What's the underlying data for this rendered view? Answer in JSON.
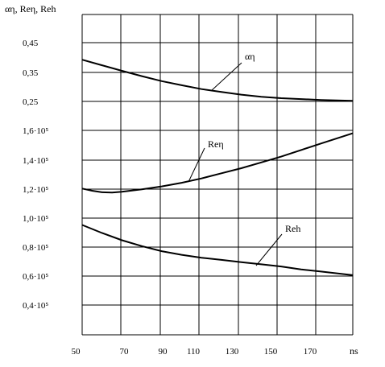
{
  "chart_data": {
    "type": "line",
    "y_axis_label": "αη, Reη, Reh",
    "x_axis_label": "ns",
    "x_ticks": [
      "50",
      "70",
      "90",
      "110",
      "130",
      "150",
      "170"
    ],
    "xlim": [
      50,
      186
    ],
    "y_ticks": [
      {
        "label": "0,45",
        "band": "alpha"
      },
      {
        "label": "0,35",
        "band": "alpha"
      },
      {
        "label": "0,25",
        "band": "alpha"
      },
      {
        "label": "1,6·10⁵",
        "band": "re"
      },
      {
        "label": "1,4·10⁵",
        "band": "re"
      },
      {
        "label": "1,2·10⁵",
        "band": "re"
      },
      {
        "label": "1,0·10⁵",
        "band": "re"
      },
      {
        "label": "0,8·10⁵",
        "band": "re"
      },
      {
        "label": "0,6·10⁵",
        "band": "re"
      },
      {
        "label": "0,4·10⁵",
        "band": "re"
      }
    ],
    "grid": true,
    "series": [
      {
        "name": "αη",
        "scale": "alpha",
        "x": [
          50,
          60,
          70,
          80,
          90,
          100,
          110,
          120,
          130,
          140,
          150,
          160,
          170,
          186
        ],
        "y": [
          0.392,
          0.373,
          0.354,
          0.336,
          0.319,
          0.305,
          0.292,
          0.282,
          0.273,
          0.266,
          0.261,
          0.258,
          0.255,
          0.252
        ]
      },
      {
        "name": "Reη",
        "scale": "re",
        "x": [
          50,
          55,
          60,
          65,
          70,
          80,
          90,
          100,
          110,
          120,
          130,
          140,
          150,
          160,
          170,
          186
        ],
        "y": [
          120000,
          118500,
          117500,
          117300,
          117800,
          119500,
          121500,
          124000,
          127000,
          130500,
          134000,
          138000,
          142000,
          146500,
          151000,
          158000
        ]
      },
      {
        "name": "Reh",
        "scale": "re",
        "x": [
          50,
          60,
          70,
          80,
          90,
          100,
          110,
          120,
          130,
          140,
          150,
          160,
          170,
          186
        ],
        "y": [
          95000,
          89500,
          84500,
          80500,
          77000,
          74500,
          72500,
          71000,
          69500,
          68000,
          66500,
          64500,
          63000,
          60500
        ]
      }
    ]
  }
}
